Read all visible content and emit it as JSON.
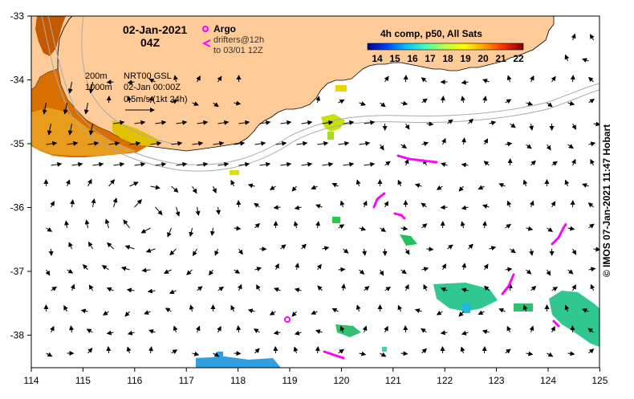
{
  "map": {
    "title_date": "02-Jan-2021",
    "title_time": "04Z",
    "argo_label": "Argo",
    "drifters_label_1": "drifters@12h",
    "drifters_label_2": "to 03/01 12Z",
    "contour_200": "200m",
    "contour_1000": "1000m",
    "product_1": "NRT00 GSL",
    "product_2": "02-Jan 00:00Z",
    "scale_label": "0.5m/s (1kt 24h)",
    "colorbar_title": "4h comp, p50, All Sats",
    "colorbar_ticks": [
      "14",
      "15",
      "16",
      "17",
      "18",
      "19",
      "20",
      "21",
      "22"
    ],
    "lon_ticks": [
      "114",
      "115",
      "116",
      "117",
      "118",
      "119",
      "120",
      "121",
      "122",
      "123",
      "124",
      "125"
    ],
    "lat_ticks": [
      "-33",
      "-34",
      "-35",
      "-36",
      "-37",
      "-38"
    ],
    "credit": "© IMOS 07-Jan-2021 11:47 Hobart",
    "colors": {
      "land": "#ffcc99",
      "argo": "#ff00ff",
      "drifter": "#ff00ff"
    }
  }
}
